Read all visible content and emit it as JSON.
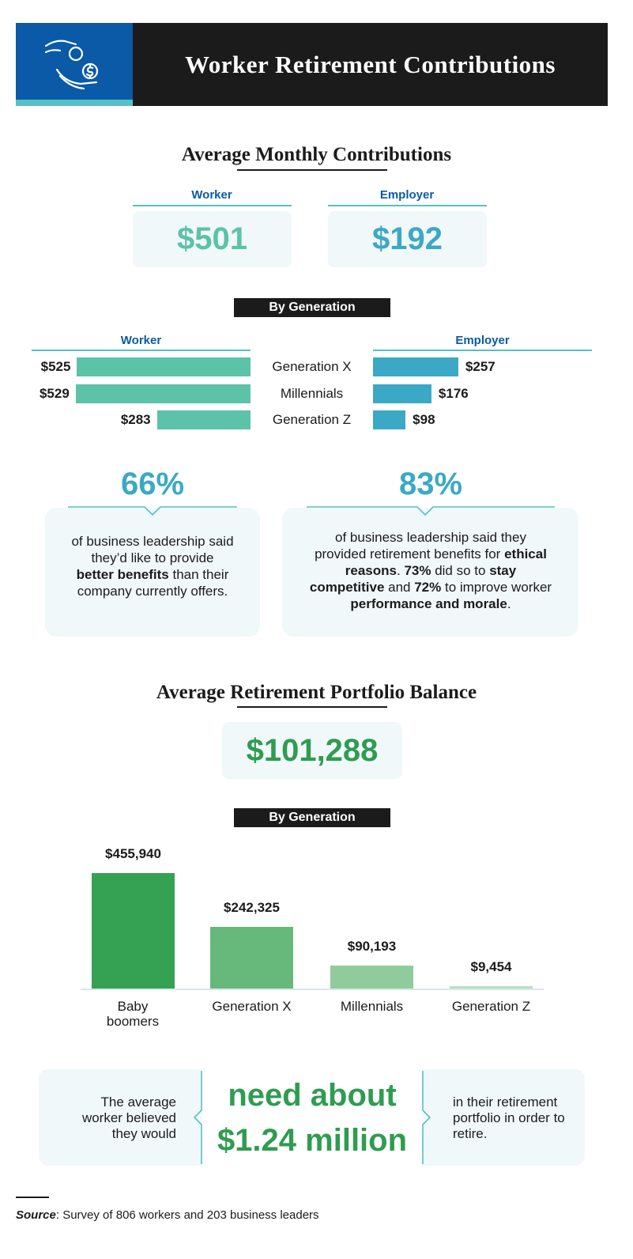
{
  "header": {
    "title": "Worker Retirement Contributions",
    "icon": "hand-coin-icon",
    "accent": "#0a5aa8"
  },
  "monthly": {
    "title": "Average Monthly Contributions",
    "worker_label": "Worker",
    "worker_value": "$501",
    "employer_label": "Employer",
    "employer_value": "$192"
  },
  "by_generation_label": "By Generation",
  "chart_data": [
    {
      "type": "bar",
      "orientation": "horizontal-diverging",
      "categories": [
        "Generation X",
        "Millennials",
        "Generation Z"
      ],
      "series": [
        {
          "name": "Worker",
          "values": [
            525,
            529,
            283
          ],
          "labels": [
            "$525",
            "$529",
            "$283"
          ],
          "color": "#5cc2a8"
        },
        {
          "name": "Employer",
          "values": [
            257,
            176,
            98
          ],
          "labels": [
            "$257",
            "$176",
            "$98"
          ],
          "color": "#3ba9c5"
        }
      ]
    },
    {
      "type": "bar",
      "title": "By Generation",
      "categories": [
        "Baby boomers",
        "Generation X",
        "Millennials",
        "Generation Z"
      ],
      "values": [
        455940,
        242325,
        90193,
        9454
      ],
      "labels": [
        "$455,940",
        "$242,325",
        "$90,193",
        "$9,454"
      ],
      "colors": [
        "#35a153",
        "#67b97b",
        "#90cb9b",
        "#b7dfc0"
      ]
    }
  ],
  "callouts": {
    "left_pct": "66%",
    "left_text_html": "of business leadership said they’d like to provide <b>better benefits</b> than their company currently offers.",
    "right_pct": "83%",
    "right_text_html": "of business leadership said they provided retirement benefits for <b>ethical reasons</b>. <b>73%</b> did so to <b>stay competitive</b> and <b>72%</b> to improve worker <b>performance and morale</b>."
  },
  "portfolio": {
    "title": "Average Retirement Portfolio Balance",
    "value": "$101,288"
  },
  "million": {
    "left_text": "The average worker believed they would",
    "big_line1": "need about",
    "big_line2": "$1.24 million",
    "right_text": "in their retirement portfolio in order to retire."
  },
  "source": {
    "label": "Source",
    "text": ": Survey of 806 workers and 203 business leaders"
  }
}
